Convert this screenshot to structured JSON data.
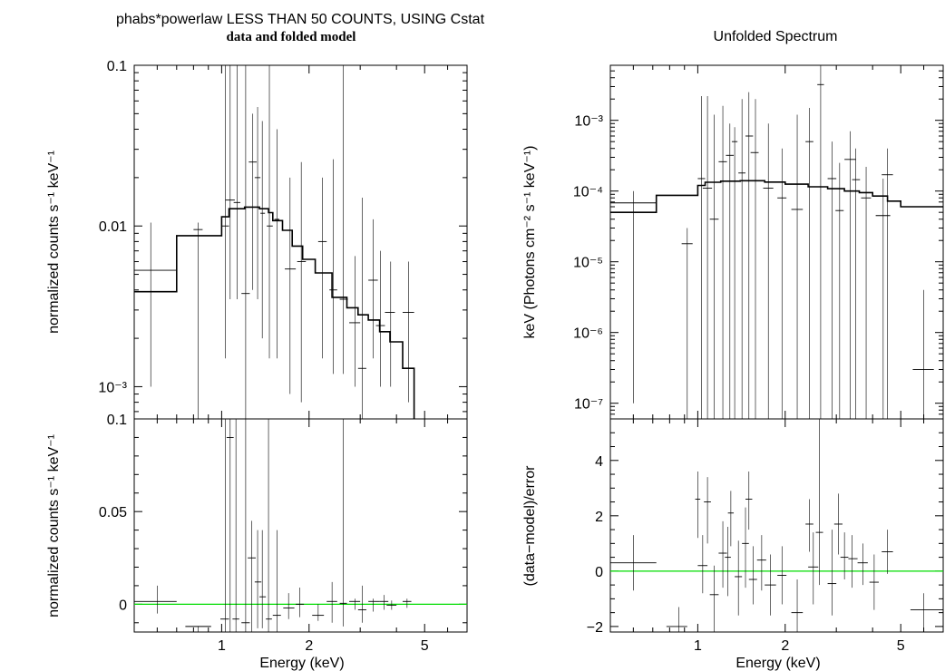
{
  "left_title": "phabs*powerlaw LESS THAN 50 COUNTS, USING Cstat",
  "left_subtitle": "data and folded model",
  "right_title": "Unfolded Spectrum",
  "x_label": "Energy (keV)",
  "colors": {
    "data": "#000000",
    "model": "#000000",
    "zero_line": "#00dd00",
    "frame": "#000000"
  },
  "chart_data": [
    {
      "id": "left_top",
      "type": "line",
      "xscale": "log",
      "yscale": "log",
      "xlim": [
        0.5,
        7.0
      ],
      "ylim": [
        0.00063,
        0.1
      ],
      "ylabel": "normalized counts s⁻¹ keV⁻¹",
      "xticks": [
        {
          "v": 1,
          "label": "1"
        },
        {
          "v": 2,
          "label": "2"
        },
        {
          "v": 5,
          "label": "5"
        }
      ],
      "yticks": [
        {
          "v": 0.1,
          "label": "0.1"
        },
        {
          "v": 0.01,
          "label": "0.01"
        },
        {
          "v": 0.001,
          "label": "10⁻³"
        }
      ],
      "model_step": [
        [
          0.5,
          0.0039
        ],
        [
          0.7,
          0.0087
        ],
        [
          1.0,
          0.0114
        ],
        [
          1.06,
          0.0128
        ],
        [
          1.2,
          0.0131
        ],
        [
          1.35,
          0.0128
        ],
        [
          1.45,
          0.0121
        ],
        [
          1.5,
          0.0108
        ],
        [
          1.62,
          0.0094
        ],
        [
          1.75,
          0.0075
        ],
        [
          1.9,
          0.0062
        ],
        [
          2.1,
          0.0051
        ],
        [
          2.4,
          0.0036
        ],
        [
          2.7,
          0.0031
        ],
        [
          2.95,
          0.0028
        ],
        [
          3.2,
          0.0026
        ],
        [
          3.5,
          0.0022
        ],
        [
          3.8,
          0.0019
        ],
        [
          4.2,
          0.0013
        ],
        [
          4.6,
          0.00063
        ]
      ],
      "series": [
        {
          "points": [
            [
              0.57,
              0.0053,
              0.5,
              0.7,
              0.001,
              0.0105
            ],
            [
              0.83,
              0.0095,
              0.8,
              0.86,
              0.00063,
              0.0105
            ],
            [
              1.03,
              0.01,
              1.0,
              1.06,
              0.0015,
              0.1
            ],
            [
              1.07,
              0.0145,
              1.03,
              1.11,
              0.0035,
              0.1
            ],
            [
              1.13,
              0.014,
              1.1,
              1.16,
              0.0035,
              0.1
            ],
            [
              1.21,
              0.0038,
              1.17,
              1.25,
              0.00063,
              0.1
            ],
            [
              1.28,
              0.025,
              1.24,
              1.32,
              0.004,
              0.05
            ],
            [
              1.33,
              0.02,
              1.3,
              1.36,
              0.0035,
              0.055
            ],
            [
              1.38,
              0.012,
              1.36,
              1.41,
              0.002,
              0.045
            ],
            [
              1.46,
              0.01,
              1.43,
              1.5,
              0.0015,
              0.1
            ],
            [
              1.55,
              0.011,
              1.52,
              1.58,
              0.0015,
              0.04
            ],
            [
              1.72,
              0.0054,
              1.65,
              1.8,
              0.0009,
              0.02
            ],
            [
              1.88,
              0.006,
              1.82,
              1.95,
              0.0008,
              0.025
            ],
            [
              2.22,
              0.008,
              2.15,
              2.3,
              0.0015,
              0.02
            ],
            [
              2.42,
              0.004,
              2.35,
              2.5,
              0.0012,
              0.026
            ],
            [
              2.62,
              0.0035,
              2.55,
              2.72,
              0.0012,
              0.1
            ],
            [
              2.88,
              0.0025,
              2.75,
              3.0,
              0.001,
              0.0065
            ],
            [
              3.05,
              0.0013,
              2.95,
              3.15,
              0.00063,
              0.015
            ],
            [
              3.33,
              0.0046,
              3.2,
              3.45,
              0.0015,
              0.011
            ],
            [
              3.52,
              0.0024,
              3.4,
              3.65,
              0.001,
              0.007
            ],
            [
              3.82,
              0.0029,
              3.65,
              3.95,
              0.001,
              0.006
            ],
            [
              4.4,
              0.0029,
              4.2,
              4.6,
              0.0008,
              0.006
            ]
          ]
        }
      ]
    },
    {
      "id": "left_bottom",
      "type": "line",
      "xscale": "log",
      "yscale": "linear",
      "xlim": [
        0.5,
        7.0
      ],
      "ylim": [
        -0.015,
        0.1
      ],
      "ylabel": "normalized counts s⁻¹ keV⁻¹",
      "xticks": [
        {
          "v": 1,
          "label": "1"
        },
        {
          "v": 2,
          "label": "2"
        },
        {
          "v": 5,
          "label": "5"
        }
      ],
      "yticks": [
        {
          "v": 0.1,
          "label": "0.1"
        },
        {
          "v": 0.05,
          "label": "0.05"
        },
        {
          "v": 0,
          "label": "0"
        }
      ],
      "zero_line": 0,
      "series": [
        {
          "points": [
            [
              0.6,
              0.0015,
              0.5,
              0.7,
              -0.005,
              0.01
            ],
            [
              0.83,
              -0.012,
              0.75,
              0.92,
              -0.015,
              -0.012
            ],
            [
              1.03,
              -0.008,
              0.99,
              1.06,
              -0.015,
              0.1
            ],
            [
              1.07,
              0.09,
              1.04,
              1.1,
              -0.015,
              0.1
            ],
            [
              1.12,
              -0.008,
              1.09,
              1.15,
              -0.015,
              0.1
            ],
            [
              1.21,
              -0.01,
              1.17,
              1.25,
              -0.015,
              0.1
            ],
            [
              1.27,
              0.025,
              1.23,
              1.31,
              -0.015,
              0.045
            ],
            [
              1.33,
              0.012,
              1.3,
              1.37,
              -0.013,
              0.04
            ],
            [
              1.38,
              0.004,
              1.35,
              1.42,
              -0.013,
              0.04
            ],
            [
              1.45,
              -0.008,
              1.42,
              1.49,
              -0.015,
              0.1
            ],
            [
              1.55,
              -0.006,
              1.5,
              1.6,
              -0.015,
              0.04
            ],
            [
              1.7,
              -0.002,
              1.63,
              1.78,
              -0.008,
              0.006
            ],
            [
              1.86,
              0.0,
              1.8,
              1.92,
              -0.007,
              0.009
            ],
            [
              2.15,
              -0.006,
              2.05,
              2.25,
              -0.009,
              0.0
            ],
            [
              2.4,
              0.0015,
              2.3,
              2.5,
              -0.01,
              0.012
            ],
            [
              2.62,
              0.0005,
              2.55,
              2.7,
              -0.012,
              0.1
            ],
            [
              2.88,
              0.0015,
              2.75,
              3.0,
              -0.003,
              0.003
            ],
            [
              3.05,
              -0.003,
              2.95,
              3.15,
              -0.01,
              0.01
            ],
            [
              3.33,
              0.0015,
              3.2,
              3.5,
              -0.004,
              0.003
            ],
            [
              3.62,
              0.0015,
              3.5,
              3.75,
              -0.003,
              0.005
            ],
            [
              3.85,
              -0.0005,
              3.7,
              4.0,
              -0.003,
              0.002
            ],
            [
              4.35,
              0.0015,
              4.2,
              4.5,
              -0.002,
              0.003
            ]
          ]
        }
      ]
    },
    {
      "id": "right_top",
      "type": "line",
      "title": "Unfolded Spectrum",
      "xscale": "log",
      "yscale": "log",
      "xlim": [
        0.5,
        7.0
      ],
      "ylim": [
        6e-08,
        0.006
      ],
      "ylabel": "keV (Photons cm⁻² s⁻¹ keV⁻¹)",
      "xticks": [
        {
          "v": 1,
          "label": "1"
        },
        {
          "v": 2,
          "label": "2"
        },
        {
          "v": 5,
          "label": "5"
        }
      ],
      "yticks": [
        {
          "v": 0.001,
          "label": "10⁻³"
        },
        {
          "v": 0.0001,
          "label": "10⁻⁴"
        },
        {
          "v": 1e-05,
          "label": "10⁻⁵"
        },
        {
          "v": 1e-06,
          "label": "10⁻⁶"
        },
        {
          "v": 1e-07,
          "label": "10⁻⁷"
        }
      ],
      "model_step": [
        [
          0.5,
          5e-05
        ],
        [
          0.72,
          8.7e-05
        ],
        [
          1.0,
          0.00012
        ],
        [
          1.06,
          0.000133
        ],
        [
          1.2,
          0.000138
        ],
        [
          1.4,
          0.00014
        ],
        [
          1.7,
          0.000134
        ],
        [
          2.0,
          0.000125
        ],
        [
          2.4,
          0.000115
        ],
        [
          2.8,
          0.000108
        ],
        [
          3.2,
          0.0001
        ],
        [
          3.6,
          9.5e-05
        ],
        [
          4.0,
          8.5e-05
        ],
        [
          4.5,
          7.2e-05
        ],
        [
          5.0,
          6e-05
        ]
      ],
      "series": [
        {
          "points": [
            [
              0.6,
              6.8e-05,
              0.5,
              0.72,
              1e-07,
              0.0001
            ],
            [
              0.92,
              1.8e-05,
              0.88,
              0.96,
              6e-08,
              3e-05
            ],
            [
              1.03,
              0.00015,
              1.0,
              1.06,
              6e-08,
              0.0022
            ],
            [
              1.08,
              0.00011,
              1.04,
              1.12,
              6e-08,
              0.0022
            ],
            [
              1.14,
              4e-05,
              1.1,
              1.18,
              6e-08,
              0.0012
            ],
            [
              1.22,
              0.00026,
              1.18,
              1.26,
              6e-08,
              0.0016
            ],
            [
              1.29,
              0.00032,
              1.25,
              1.33,
              6e-08,
              0.0009
            ],
            [
              1.34,
              0.0005,
              1.31,
              1.37,
              6e-08,
              0.0008
            ],
            [
              1.42,
              0.00018,
              1.38,
              1.46,
              6e-08,
              0.002
            ],
            [
              1.5,
              0.0006,
              1.46,
              1.55,
              6e-08,
              0.0025
            ],
            [
              1.58,
              0.00035,
              1.52,
              1.62,
              6e-08,
              0.002
            ],
            [
              1.75,
              0.00011,
              1.68,
              1.82,
              6e-08,
              0.0009
            ],
            [
              1.95,
              8e-05,
              1.88,
              2.02,
              6e-08,
              0.0004
            ],
            [
              2.2,
              5.5e-05,
              2.1,
              2.3,
              6e-08,
              0.0012
            ],
            [
              2.42,
              0.0005,
              2.35,
              2.5,
              6e-08,
              0.0015
            ],
            [
              2.65,
              0.0032,
              2.58,
              2.72,
              6e-08,
              0.006
            ],
            [
              2.9,
              0.00015,
              2.8,
              3.0,
              6e-08,
              0.0005
            ],
            [
              3.08,
              5.3e-05,
              2.98,
              3.18,
              6e-08,
              0.00025
            ],
            [
              3.35,
              0.00028,
              3.2,
              3.5,
              6e-08,
              0.0007
            ],
            [
              3.5,
              0.000145,
              3.4,
              3.62,
              6e-08,
              0.0004
            ],
            [
              3.8,
              8e-05,
              3.65,
              3.95,
              6e-08,
              0.00022
            ],
            [
              4.35,
              4.5e-05,
              4.1,
              4.6,
              6e-08,
              0.00015
            ],
            [
              4.5,
              0.00017,
              4.3,
              4.7,
              6e-08,
              0.0004
            ],
            [
              6.0,
              3e-07,
              5.5,
              6.5,
              6e-08,
              4e-06
            ]
          ]
        }
      ]
    },
    {
      "id": "right_bottom",
      "type": "line",
      "xscale": "log",
      "yscale": "linear",
      "xlim": [
        0.5,
        7.0
      ],
      "ylim": [
        -2.2,
        5.5
      ],
      "ylabel": "(data−model)/error",
      "xticks": [
        {
          "v": 1,
          "label": "1"
        },
        {
          "v": 2,
          "label": "2"
        },
        {
          "v": 5,
          "label": "5"
        }
      ],
      "yticks": [
        {
          "v": 4,
          "label": "4"
        },
        {
          "v": 2,
          "label": "2"
        },
        {
          "v": 0,
          "label": "0"
        },
        {
          "v": -2,
          "label": "−2"
        }
      ],
      "zero_line": 0,
      "series": [
        {
          "points": [
            [
              0.6,
              0.3,
              0.5,
              0.72,
              -0.7,
              1.3
            ],
            [
              0.86,
              -2.0,
              0.78,
              0.92,
              -2.2,
              -1.3
            ],
            [
              1.0,
              2.6,
              0.98,
              1.02,
              1.2,
              3.6
            ],
            [
              1.04,
              0.2,
              1.0,
              1.08,
              -0.8,
              1.3
            ],
            [
              1.08,
              2.5,
              1.05,
              1.11,
              1.0,
              3.4
            ],
            [
              1.14,
              -0.85,
              1.1,
              1.18,
              -2.2,
              0.2
            ],
            [
              1.22,
              0.65,
              1.18,
              1.26,
              -0.6,
              1.8
            ],
            [
              1.27,
              0.5,
              1.24,
              1.3,
              -0.9,
              1.6
            ],
            [
              1.3,
              2.1,
              1.27,
              1.33,
              0.9,
              2.9
            ],
            [
              1.38,
              -0.2,
              1.34,
              1.42,
              -1.6,
              1.1
            ],
            [
              1.46,
              1.0,
              1.42,
              1.5,
              -0.6,
              2.3
            ],
            [
              1.5,
              2.6,
              1.46,
              1.54,
              1.5,
              3.6
            ],
            [
              1.55,
              -0.3,
              1.5,
              1.6,
              -1.2,
              0.9
            ],
            [
              1.66,
              0.4,
              1.6,
              1.72,
              -0.7,
              1.3
            ],
            [
              1.78,
              -0.5,
              1.7,
              1.86,
              -1.6,
              0.6
            ],
            [
              1.95,
              -0.15,
              1.88,
              2.02,
              -1.2,
              0.9
            ],
            [
              2.2,
              -1.5,
              2.1,
              2.3,
              -2.2,
              -0.3
            ],
            [
              2.42,
              1.7,
              2.35,
              2.5,
              0.7,
              2.6
            ],
            [
              2.5,
              0.15,
              2.4,
              2.6,
              -1.2,
              1.4
            ],
            [
              2.62,
              1.4,
              2.55,
              2.7,
              -0.5,
              5.5
            ],
            [
              2.9,
              -0.45,
              2.8,
              3.0,
              -1.6,
              1.5
            ],
            [
              3.05,
              1.7,
              2.95,
              3.15,
              0.6,
              2.8
            ],
            [
              3.2,
              0.5,
              3.1,
              3.3,
              -0.3,
              1.4
            ],
            [
              3.4,
              0.45,
              3.3,
              3.55,
              -0.6,
              1.3
            ],
            [
              3.7,
              0.3,
              3.55,
              3.85,
              -0.5,
              1.0
            ],
            [
              4.05,
              -0.4,
              3.9,
              4.2,
              -1.4,
              0.6
            ],
            [
              4.5,
              0.7,
              4.3,
              4.7,
              -0.1,
              1.5
            ],
            [
              6.0,
              -1.4,
              5.4,
              7.0,
              -2.2,
              -0.8
            ]
          ]
        }
      ]
    }
  ]
}
